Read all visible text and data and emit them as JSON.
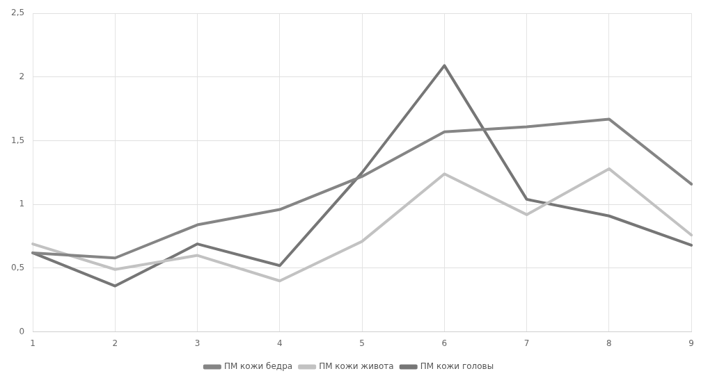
{
  "chart_data": {
    "type": "line",
    "categories": [
      "1",
      "2",
      "3",
      "4",
      "5",
      "6",
      "7",
      "8",
      "9"
    ],
    "series": [
      {
        "name": "ПМ кожи бедра",
        "color": "#858585",
        "values": [
          0.62,
          0.58,
          0.84,
          0.96,
          1.22,
          1.57,
          1.61,
          1.67,
          1.16
        ]
      },
      {
        "name": "ПМ кожи живота",
        "color": "#c2c2c2",
        "values": [
          0.69,
          0.49,
          0.6,
          0.4,
          0.71,
          1.24,
          0.92,
          1.28,
          0.76
        ]
      },
      {
        "name": "ПМ кожи головы",
        "color": "#767676",
        "values": [
          0.62,
          0.36,
          0.69,
          0.52,
          1.25,
          2.09,
          1.04,
          0.91,
          0.68
        ]
      }
    ],
    "ylim": [
      0,
      2.5
    ],
    "yticks": [
      0,
      {
        "value": 0.5,
        "label": "0,5"
      },
      1,
      {
        "value": 1.5,
        "label": "1,5"
      },
      2,
      {
        "value": 2.5,
        "label": "2,5"
      }
    ],
    "grid": true,
    "legend": "bottom",
    "marker": "none",
    "line_style": "solid"
  }
}
